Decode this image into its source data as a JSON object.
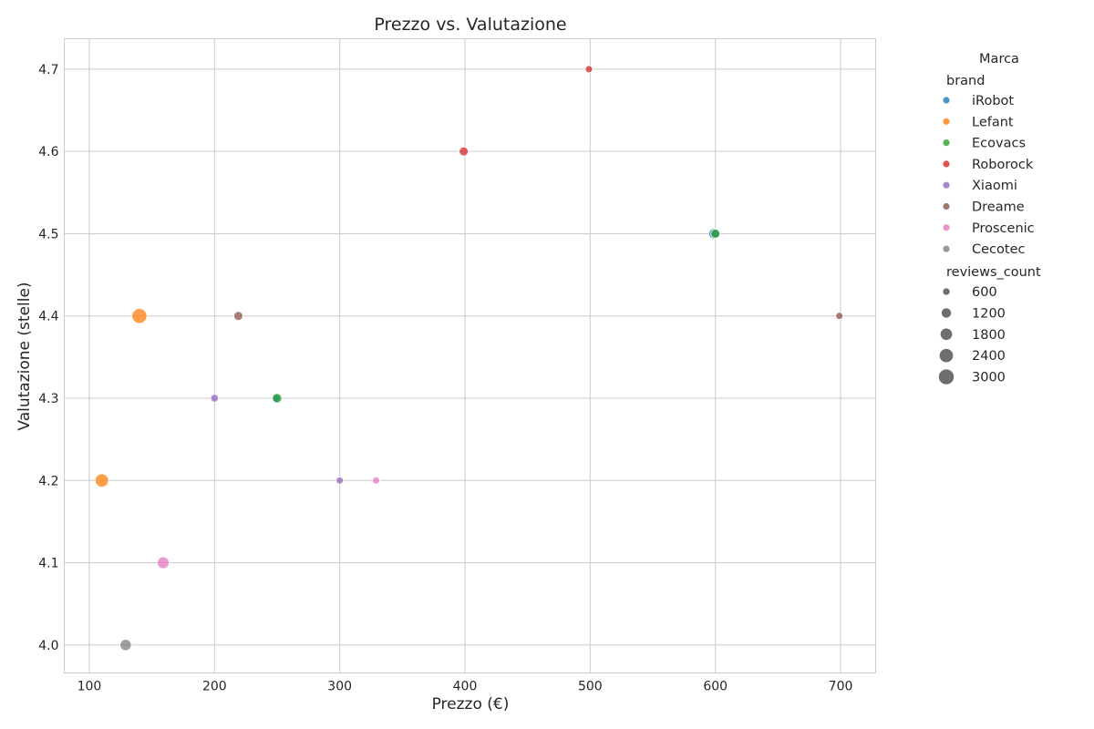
{
  "chart_data": {
    "type": "scatter",
    "title": "Prezzo vs. Valutazione",
    "xlabel": "Prezzo (€)",
    "ylabel": "Valutazione (stelle)",
    "xlim": [
      80,
      728
    ],
    "ylim": [
      3.966,
      4.737
    ],
    "xticks": [
      100,
      200,
      300,
      400,
      500,
      600,
      700
    ],
    "yticks": [
      4.0,
      4.1,
      4.2,
      4.3,
      4.4,
      4.5,
      4.6,
      4.7
    ],
    "grid": true,
    "legend": {
      "title": "Marca",
      "placement": "outside-right",
      "hue_title": "brand",
      "size_title": "reviews_count",
      "size_entries": [
        "600",
        "1200",
        "1800",
        "2400",
        "3000"
      ],
      "size_values": [
        600,
        1200,
        1800,
        2400,
        3000
      ]
    },
    "series": [
      {
        "name": "iRobot",
        "color": "#1f77b4",
        "points": [
          {
            "x": 599,
            "y": 4.5,
            "reviews": 1500
          },
          {
            "x": 249,
            "y": 4.3,
            "reviews": 1000
          }
        ]
      },
      {
        "name": "Lefant",
        "color": "#ff7f0e",
        "points": [
          {
            "x": 140,
            "y": 4.4,
            "reviews": 3000
          },
          {
            "x": 110,
            "y": 4.2,
            "reviews": 2400
          }
        ]
      },
      {
        "name": "Ecovacs",
        "color": "#2ca02c",
        "points": [
          {
            "x": 250,
            "y": 4.3,
            "reviews": 1200
          },
          {
            "x": 600,
            "y": 4.5,
            "reviews": 1100
          }
        ]
      },
      {
        "name": "Roborock",
        "color": "#d62728",
        "points": [
          {
            "x": 499,
            "y": 4.7,
            "reviews": 700
          },
          {
            "x": 399,
            "y": 4.6,
            "reviews": 1100
          }
        ]
      },
      {
        "name": "Xiaomi",
        "color": "#9467bd",
        "points": [
          {
            "x": 200,
            "y": 4.3,
            "reviews": 800
          },
          {
            "x": 300,
            "y": 4.2,
            "reviews": 700
          }
        ]
      },
      {
        "name": "Dreame",
        "color": "#8c564b",
        "points": [
          {
            "x": 219,
            "y": 4.4,
            "reviews": 1100
          },
          {
            "x": 699,
            "y": 4.4,
            "reviews": 700
          }
        ]
      },
      {
        "name": "Proscenic",
        "color": "#e377c2",
        "points": [
          {
            "x": 159,
            "y": 4.1,
            "reviews": 1900
          },
          {
            "x": 329,
            "y": 4.2,
            "reviews": 700
          }
        ]
      },
      {
        "name": "Cecotec",
        "color": "#7f7f7f",
        "points": [
          {
            "x": 129,
            "y": 4.0,
            "reviews": 1700
          }
        ]
      }
    ]
  }
}
